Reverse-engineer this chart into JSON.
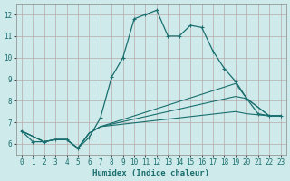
{
  "xlabel": "Humidex (Indice chaleur)",
  "bg_color": "#ceeaea",
  "grid_color": "#b8a8a8",
  "line_color": "#1a6e6e",
  "xlim": [
    -0.5,
    23.5
  ],
  "ylim": [
    5.5,
    12.5
  ],
  "xticks": [
    0,
    1,
    2,
    3,
    4,
    5,
    6,
    7,
    8,
    9,
    10,
    11,
    12,
    13,
    14,
    15,
    16,
    17,
    18,
    19,
    20,
    21,
    22,
    23
  ],
  "yticks": [
    6,
    7,
    8,
    9,
    10,
    11,
    12
  ],
  "series": [
    {
      "x": [
        0,
        1,
        2,
        3,
        4,
        5,
        6,
        7,
        8,
        9,
        10,
        11,
        12,
        13,
        14,
        15,
        16,
        17,
        18,
        19,
        20,
        21,
        22,
        23
      ],
      "y": [
        6.6,
        6.1,
        6.1,
        6.2,
        6.2,
        5.8,
        6.3,
        7.2,
        9.1,
        10.0,
        11.8,
        12.0,
        12.2,
        11.0,
        11.0,
        11.5,
        11.4,
        10.3,
        9.5,
        8.9,
        8.1,
        7.4,
        7.3,
        7.3
      ],
      "marker": true
    },
    {
      "x": [
        0,
        2,
        3,
        4,
        5,
        6,
        7,
        19,
        20,
        22,
        23
      ],
      "y": [
        6.6,
        6.1,
        6.2,
        6.2,
        5.8,
        6.5,
        6.8,
        8.8,
        8.1,
        7.3,
        7.3
      ],
      "marker": false
    },
    {
      "x": [
        0,
        2,
        3,
        4,
        5,
        6,
        7,
        19,
        20,
        22,
        23
      ],
      "y": [
        6.6,
        6.1,
        6.2,
        6.2,
        5.8,
        6.5,
        6.8,
        8.2,
        8.1,
        7.3,
        7.3
      ],
      "marker": false
    },
    {
      "x": [
        0,
        2,
        3,
        4,
        5,
        6,
        7,
        19,
        20,
        22,
        23
      ],
      "y": [
        6.6,
        6.1,
        6.2,
        6.2,
        5.8,
        6.5,
        6.8,
        7.5,
        7.4,
        7.3,
        7.3
      ],
      "marker": false
    }
  ]
}
